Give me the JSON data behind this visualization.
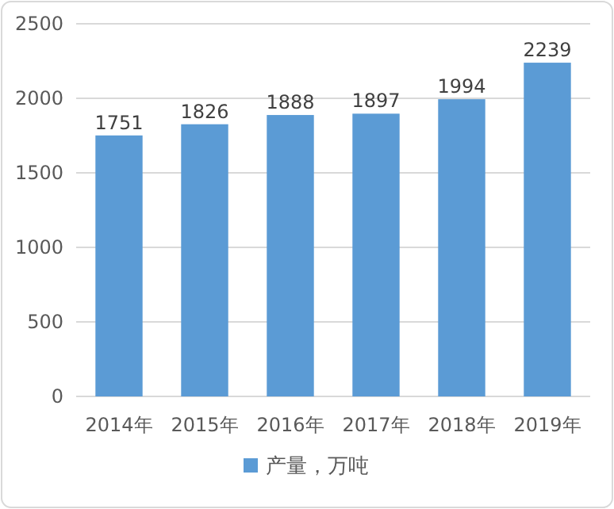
{
  "chart_data": {
    "type": "bar",
    "categories": [
      "2014年",
      "2015年",
      "2016年",
      "2017年",
      "2018年",
      "2019年"
    ],
    "series": [
      {
        "name": "产量，万吨",
        "color": "#5b9bd5",
        "values": [
          1751,
          1826,
          1888,
          1897,
          1994,
          2239
        ]
      }
    ],
    "ylim": [
      0,
      2500
    ],
    "yticks": [
      0,
      500,
      1000,
      1500,
      2000,
      2500
    ],
    "grid": "y",
    "legend": "bottom",
    "data_labels": true
  }
}
